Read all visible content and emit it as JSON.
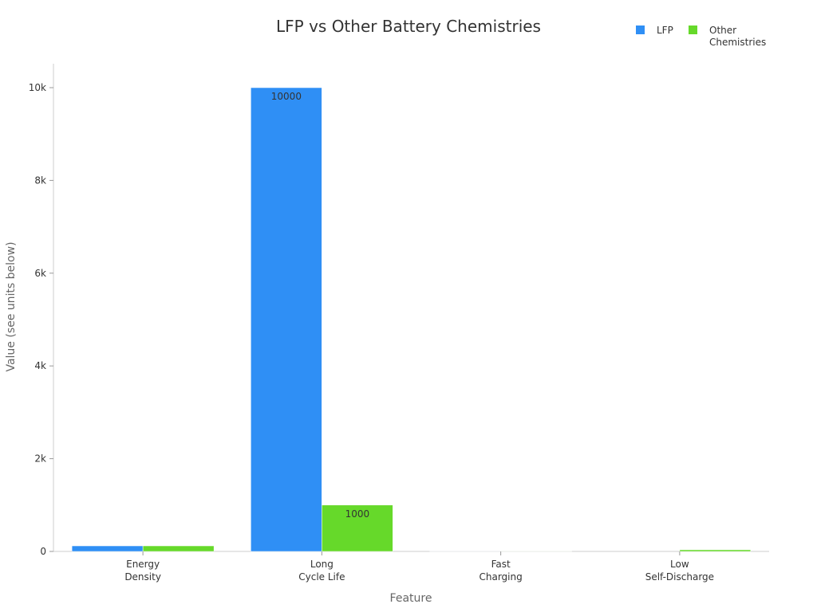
{
  "chart_data": {
    "type": "bar",
    "title": "LFP vs Other Battery Chemistries",
    "xlabel": "Feature",
    "ylabel": "Value (see units below)",
    "categories": [
      [
        "Energy",
        "Density"
      ],
      [
        "Long",
        "Cycle Life"
      ],
      [
        "Fast",
        "Charging"
      ],
      [
        "Low",
        "Self-Discharge"
      ]
    ],
    "series": [
      {
        "name": "LFP",
        "color": "#2f8ff5",
        "values": [
          120,
          10000,
          1,
          0
        ],
        "labels": [
          "",
          "10000",
          "",
          ""
        ]
      },
      {
        "name": "Other Chemistries",
        "legend_lines": [
          "Other",
          "Chemistries"
        ],
        "color": "#66d92a",
        "values": [
          120,
          1000,
          2,
          35
        ],
        "labels": [
          "",
          "1000",
          "",
          ""
        ]
      }
    ],
    "ylim": [
      0,
      10500
    ],
    "yticks": [
      0,
      2000,
      4000,
      6000,
      8000,
      10000
    ],
    "ytick_labels": [
      "0",
      "2k",
      "4k",
      "6k",
      "8k",
      "10k"
    ],
    "grid": false,
    "legend_position": "top-right"
  }
}
